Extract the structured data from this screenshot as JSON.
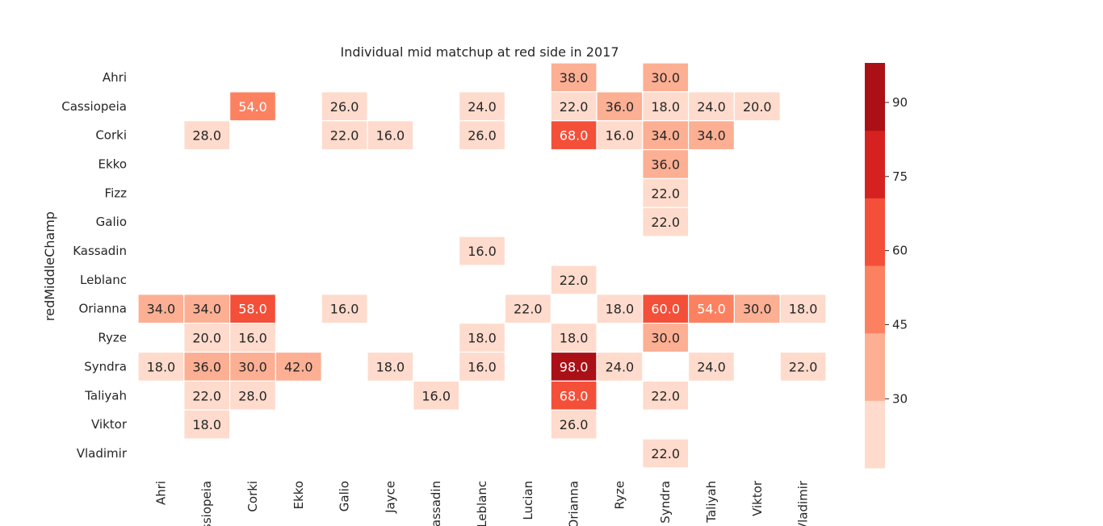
{
  "chart_data": {
    "type": "heatmap",
    "title": "Individual mid matchup at red side in 2017",
    "ylabel": "redMiddleChamp",
    "xlabel": "",
    "x_categories": [
      "Ahri",
      "Cassiopeia",
      "Corki",
      "Ekko",
      "Galio",
      "Jayce",
      "Kassadin",
      "Leblanc",
      "Lucian",
      "Orianna",
      "Ryze",
      "Syndra",
      "Taliyah",
      "Viktor",
      "Vladimir"
    ],
    "y_categories": [
      "Ahri",
      "Cassiopeia",
      "Corki",
      "Ekko",
      "Fizz",
      "Galio",
      "Kassadin",
      "Leblanc",
      "Orianna",
      "Ryze",
      "Syndra",
      "Taliyah",
      "Viktor",
      "Vladimir"
    ],
    "values": [
      [
        null,
        null,
        null,
        null,
        null,
        null,
        null,
        null,
        null,
        38.0,
        null,
        30.0,
        null,
        null,
        null
      ],
      [
        null,
        null,
        54.0,
        null,
        26.0,
        null,
        null,
        24.0,
        null,
        22.0,
        36.0,
        18.0,
        24.0,
        20.0,
        null
      ],
      [
        null,
        28.0,
        null,
        null,
        22.0,
        16.0,
        null,
        26.0,
        null,
        68.0,
        16.0,
        34.0,
        34.0,
        null,
        null
      ],
      [
        null,
        null,
        null,
        null,
        null,
        null,
        null,
        null,
        null,
        null,
        null,
        36.0,
        null,
        null,
        null
      ],
      [
        null,
        null,
        null,
        null,
        null,
        null,
        null,
        null,
        null,
        null,
        null,
        22.0,
        null,
        null,
        null
      ],
      [
        null,
        null,
        null,
        null,
        null,
        null,
        null,
        null,
        null,
        null,
        null,
        22.0,
        null,
        null,
        null
      ],
      [
        null,
        null,
        null,
        null,
        null,
        null,
        null,
        16.0,
        null,
        null,
        null,
        null,
        null,
        null,
        null
      ],
      [
        null,
        null,
        null,
        null,
        null,
        null,
        null,
        null,
        null,
        22.0,
        null,
        null,
        null,
        null,
        null
      ],
      [
        34.0,
        34.0,
        58.0,
        null,
        16.0,
        null,
        null,
        null,
        22.0,
        null,
        18.0,
        60.0,
        54.0,
        30.0,
        18.0
      ],
      [
        null,
        20.0,
        16.0,
        null,
        null,
        null,
        null,
        18.0,
        null,
        18.0,
        null,
        30.0,
        null,
        null,
        null
      ],
      [
        18.0,
        36.0,
        30.0,
        42.0,
        null,
        18.0,
        null,
        16.0,
        null,
        98.0,
        24.0,
        null,
        24.0,
        null,
        22.0
      ],
      [
        null,
        22.0,
        28.0,
        null,
        null,
        null,
        16.0,
        null,
        null,
        68.0,
        null,
        22.0,
        null,
        null,
        null
      ],
      [
        null,
        18.0,
        null,
        null,
        null,
        null,
        null,
        null,
        null,
        26.0,
        null,
        null,
        null,
        null,
        null
      ],
      [
        null,
        null,
        null,
        null,
        null,
        null,
        null,
        null,
        null,
        null,
        null,
        22.0,
        null,
        null,
        null
      ]
    ],
    "value_format": "0.0",
    "colormap": "Reds",
    "vmin": 16,
    "vmax": 98,
    "colorbar_ticks": [
      30,
      45,
      60,
      75,
      90
    ],
    "color_bins": [
      "#fedbcc",
      "#fcaf93",
      "#fc8161",
      "#f44f39",
      "#d52221",
      "#aa1016"
    ],
    "grid": false,
    "legend": "colorbar-right"
  }
}
